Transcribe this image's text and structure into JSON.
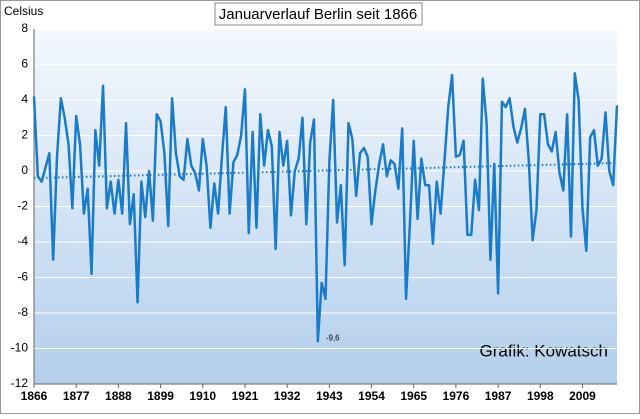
{
  "chart_data": {
    "type": "line",
    "title": "Januarverlauf Berlin seit 1866",
    "y_label": "Celsius",
    "source": "Grafik: Kowatsch",
    "x": [
      1866,
      1867,
      1868,
      1869,
      1870,
      1871,
      1872,
      1873,
      1874,
      1875,
      1876,
      1877,
      1878,
      1879,
      1880,
      1881,
      1882,
      1883,
      1884,
      1885,
      1886,
      1887,
      1888,
      1889,
      1890,
      1891,
      1892,
      1893,
      1894,
      1895,
      1896,
      1897,
      1898,
      1899,
      1900,
      1901,
      1902,
      1903,
      1904,
      1905,
      1906,
      1907,
      1908,
      1909,
      1910,
      1911,
      1912,
      1913,
      1914,
      1915,
      1916,
      1917,
      1918,
      1919,
      1920,
      1921,
      1922,
      1923,
      1924,
      1925,
      1926,
      1927,
      1928,
      1929,
      1930,
      1931,
      1932,
      1933,
      1934,
      1935,
      1936,
      1937,
      1938,
      1939,
      1940,
      1941,
      1942,
      1943,
      1944,
      1945,
      1946,
      1947,
      1948,
      1949,
      1950,
      1951,
      1952,
      1953,
      1954,
      1955,
      1956,
      1957,
      1958,
      1959,
      1960,
      1961,
      1962,
      1963,
      1964,
      1965,
      1966,
      1967,
      1968,
      1969,
      1970,
      1971,
      1972,
      1973,
      1974,
      1975,
      1976,
      1977,
      1978,
      1979,
      1980,
      1981,
      1982,
      1983,
      1984,
      1985,
      1986,
      1987,
      1988,
      1989,
      1990,
      1991,
      1992,
      1993,
      1994,
      1995,
      1996,
      1997,
      1998,
      1999,
      2000,
      2001,
      2002,
      2003,
      2004,
      2005,
      2006,
      2007,
      2008,
      2009,
      2010,
      2011,
      2012,
      2013,
      2014,
      2015,
      2016,
      2017,
      2018
    ],
    "series": [
      {
        "name": "Januar",
        "color": "#1a7cc9",
        "values": [
          4.2,
          -0.3,
          -0.6,
          0.2,
          1.0,
          -5.0,
          0.8,
          4.1,
          3.0,
          1.5,
          -2.1,
          3.1,
          1.5,
          -2.4,
          -1.0,
          -5.8,
          2.3,
          0.3,
          4.8,
          -2.1,
          -0.6,
          -2.4,
          -0.5,
          -2.4,
          2.7,
          -3.0,
          -1.3,
          -7.4,
          -0.6,
          -2.6,
          0.0,
          -2.8,
          3.2,
          2.8,
          1.0,
          -3.1,
          4.1,
          1.0,
          -0.3,
          -0.5,
          1.8,
          0.3,
          -0.1,
          -1.1,
          1.8,
          0.3,
          -3.2,
          -0.7,
          -2.4,
          0.8,
          3.6,
          -2.4,
          0.5,
          0.9,
          2.0,
          4.6,
          -3.5,
          2.2,
          -3.2,
          3.2,
          0.3,
          2.3,
          1.4,
          -4.4,
          2.2,
          0.3,
          1.7,
          -2.5,
          0.0,
          0.7,
          3.0,
          -3.0,
          1.6,
          2.9,
          -9.6,
          -6.3,
          -7.2,
          0.5,
          4.0,
          -2.9,
          -0.8,
          -5.3,
          2.7,
          1.8,
          -1.4,
          1.0,
          1.3,
          0.8,
          -3.0,
          -1.1,
          0.4,
          1.5,
          -0.3,
          0.6,
          0.4,
          -1.0,
          2.4,
          -7.2,
          -3.0,
          1.7,
          -2.7,
          0.7,
          -0.8,
          -0.8,
          -4.1,
          -0.6,
          -2.4,
          0.5,
          3.6,
          5.4,
          0.8,
          0.9,
          1.7,
          -3.6,
          -3.6,
          -0.5,
          -2.2,
          5.2,
          2.7,
          -5.0,
          0.4,
          -6.9,
          3.9,
          3.6,
          4.1,
          2.5,
          1.6,
          2.4,
          3.5,
          0.6,
          -3.9,
          -2.2,
          3.2,
          3.2,
          1.5,
          1.1,
          2.2,
          -0.1,
          -1.1,
          3.2,
          -3.7,
          5.5,
          4.0,
          -2.1,
          -4.5,
          1.9,
          2.3,
          0.3,
          0.7,
          3.3,
          0.0,
          -0.8,
          3.7
        ]
      }
    ],
    "trend": {
      "x": [
        1866,
        2018
      ],
      "values": [
        -0.4,
        0.45
      ],
      "color": "#1a7cc9"
    },
    "annotations": [
      {
        "text": "-9,6",
        "x": 1940,
        "y": -9.6
      }
    ],
    "xlim": [
      1866,
      2018
    ],
    "xticks": [
      1866,
      1877,
      1888,
      1899,
      1910,
      1921,
      1932,
      1943,
      1954,
      1965,
      1976,
      1987,
      1998,
      2009
    ],
    "ylim": [
      -12,
      8
    ],
    "yticks": [
      -12,
      -10,
      -8,
      -6,
      -4,
      -2,
      0,
      2,
      4,
      6,
      8
    ],
    "grid": true
  }
}
